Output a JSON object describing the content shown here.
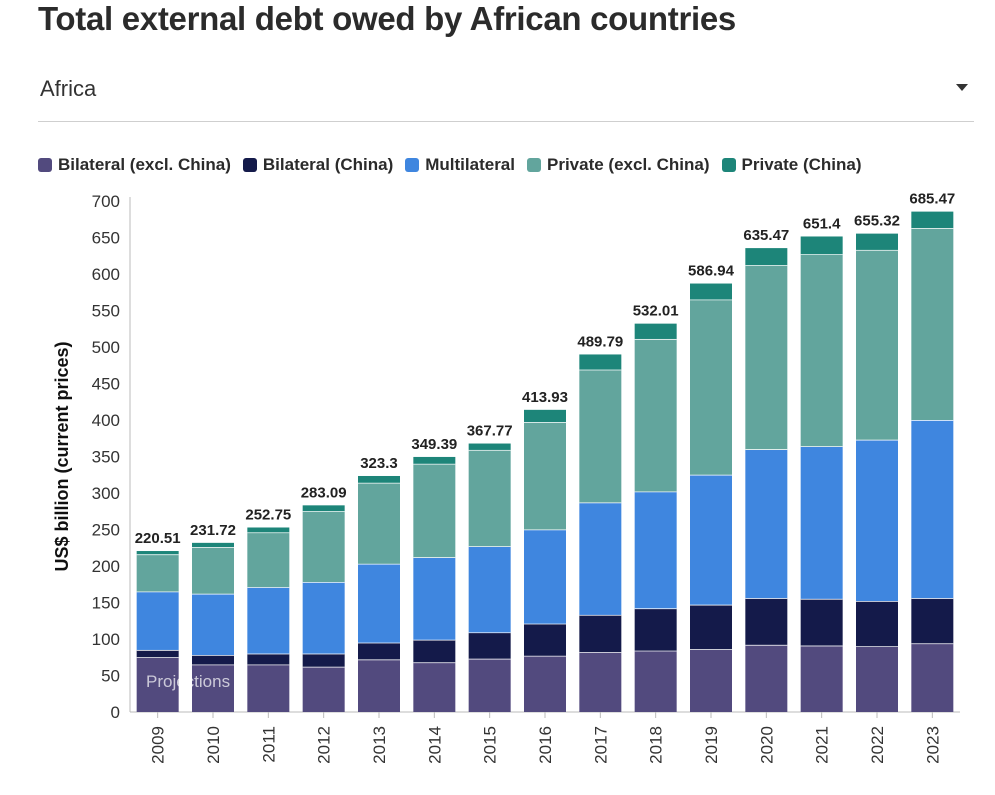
{
  "title": "Total external debt owed by African countries",
  "region_select": {
    "value": "Africa",
    "icon": "chevron-down-icon"
  },
  "chart_data": {
    "type": "bar",
    "stacked": true,
    "categories": [
      "2009",
      "2010",
      "2011",
      "2012",
      "2013",
      "2014",
      "2015",
      "2016",
      "2017",
      "2018",
      "2019",
      "2020",
      "2021",
      "2022",
      "2023"
    ],
    "ylabel": "US$ billion (current prices)",
    "xlabel": "",
    "ylim": [
      0,
      700
    ],
    "yticks": [
      0,
      50,
      100,
      150,
      200,
      250,
      300,
      350,
      400,
      450,
      500,
      550,
      600,
      650,
      700
    ],
    "grid": false,
    "legend_position": "top",
    "annotation": "Projections",
    "series": [
      {
        "name": "Bilateral (excl. China)",
        "color": "#524a7e",
        "values": [
          75,
          65,
          65,
          62,
          72,
          68,
          73,
          77,
          82,
          84,
          86,
          92,
          91,
          90,
          94
        ]
      },
      {
        "name": "Bilateral (China)",
        "color": "#141a4a",
        "values": [
          10,
          13,
          15,
          18,
          23,
          31,
          36,
          44,
          51,
          58,
          61,
          64,
          64,
          62,
          62
        ]
      },
      {
        "name": "Multilateral",
        "color": "#3f86df",
        "values": [
          80,
          84,
          91,
          98,
          108,
          113,
          118,
          129,
          154,
          160,
          178,
          204,
          209,
          221,
          244
        ]
      },
      {
        "name": "Private (excl. China)",
        "color": "#62a59d",
        "values": [
          51,
          64,
          75,
          97,
          111,
          128,
          132,
          147,
          182,
          209,
          240,
          252,
          263,
          260,
          263
        ]
      },
      {
        "name": "Private (China)",
        "color": "#1d8579",
        "values": [
          4.51,
          5.72,
          6.75,
          8.09,
          9.3,
          9.39,
          8.77,
          16.93,
          20.79,
          21.01,
          21.94,
          23.47,
          24.4,
          22.32,
          22.47
        ]
      }
    ],
    "totals": [
      "220.51",
      "231.72",
      "252.75",
      "283.09",
      "323.3",
      "349.39",
      "367.77",
      "413.93",
      "489.79",
      "532.01",
      "586.94",
      "635.47",
      "651.4",
      "655.32",
      "685.47"
    ]
  }
}
